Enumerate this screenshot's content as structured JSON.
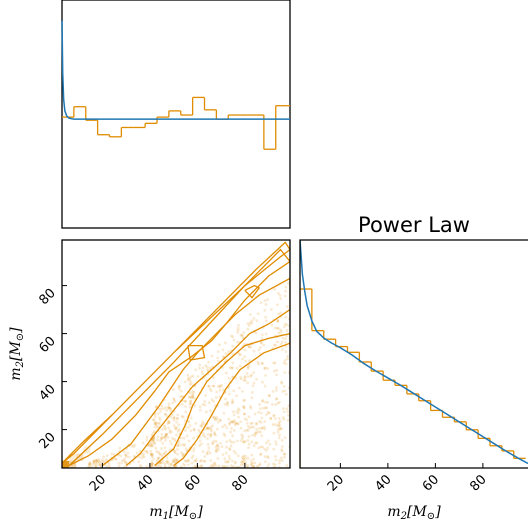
{
  "colors": {
    "samples": "#e08c00",
    "model": "#1f77b4",
    "axes": "#000000"
  },
  "chart_data": [
    {
      "type": "line",
      "panel": "m1-marginal",
      "title": "",
      "xlabel": "",
      "ylabel": "",
      "xlim": [
        3,
        99
      ],
      "histogram": {
        "bin_edges": [
          3,
          8,
          13,
          18,
          23,
          28,
          33,
          38,
          43,
          48,
          53,
          58,
          63,
          68,
          73,
          78,
          83,
          88,
          93,
          98
        ],
        "density": [
          0.0107,
          0.0117,
          0.0104,
          0.009,
          0.0088,
          0.0097,
          0.0097,
          0.0101,
          0.0107,
          0.0113,
          0.0109,
          0.0126,
          0.0114,
          0.0105,
          0.0109,
          0.0109,
          0.0109,
          0.0076,
          0.0118
        ]
      },
      "model": {
        "x": [
          3,
          3.3,
          3.7,
          4.2,
          5,
          6,
          8,
          12,
          20,
          40,
          99
        ],
        "y": [
          0.02,
          0.015,
          0.0124,
          0.0113,
          0.0108,
          0.0106,
          0.0105,
          0.0105,
          0.0105,
          0.0105,
          0.0105
        ]
      },
      "ylim": [
        0,
        0.022
      ],
      "ticks_shown": false
    },
    {
      "type": "scatter",
      "panel": "m1-m2-joint",
      "title": "",
      "xlabel": "m_1[M_⊙]",
      "ylabel": "m_2[M_⊙]",
      "xlim": [
        3,
        99
      ],
      "ylim": [
        4,
        99
      ],
      "x_ticks": [
        20,
        40,
        60,
        80
      ],
      "y_ticks": [
        20,
        40,
        60,
        80
      ],
      "x_tick_labels": [
        "20",
        "40",
        "60",
        "80"
      ],
      "y_tick_labels": [
        "20",
        "40",
        "60",
        "80"
      ],
      "boundary": "m2 <= m1",
      "contours": [
        {
          "level": 1,
          "points": [
            [
              3,
              6
            ],
            [
              12,
              15
            ],
            [
              25,
              27
            ],
            [
              40,
              42
            ],
            [
              55,
              57
            ],
            [
              70,
              72
            ],
            [
              85,
              87
            ],
            [
              97,
              98
            ],
            [
              99,
              95
            ],
            [
              95,
              92
            ],
            [
              80,
              80
            ],
            [
              65,
              66
            ],
            [
              50,
              52
            ],
            [
              35,
              37
            ],
            [
              20,
              22
            ],
            [
              8,
              10
            ],
            [
              3,
              6
            ]
          ]
        },
        {
          "level": 2,
          "points": [
            [
              6,
              5
            ],
            [
              20,
              18
            ],
            [
              35,
              33
            ],
            [
              50,
              48
            ],
            [
              65,
              64
            ],
            [
              80,
              80
            ],
            [
              95,
              95
            ],
            [
              99,
              90
            ],
            [
              90,
              84
            ],
            [
              80,
              74
            ],
            [
              72,
              64
            ],
            [
              66,
              57
            ],
            [
              57,
              50
            ],
            [
              48,
              44
            ],
            [
              42,
              36
            ],
            [
              34,
              26
            ],
            [
              24,
              16
            ],
            [
              14,
              9
            ],
            [
              6,
              5
            ]
          ]
        },
        {
          "level": 3,
          "points": [
            [
              20,
              5
            ],
            [
              32,
              14
            ],
            [
              44,
              30
            ],
            [
              54,
              45
            ],
            [
              60,
              52
            ],
            [
              68,
              60
            ],
            [
              76,
              68
            ],
            [
              86,
              76
            ],
            [
              99,
              83
            ],
            [
              99,
              70
            ],
            [
              90,
              64
            ],
            [
              82,
              60
            ],
            [
              74,
              52
            ],
            [
              66,
              45
            ],
            [
              58,
              38
            ],
            [
              50,
              28
            ],
            [
              42,
              18
            ],
            [
              36,
              10
            ],
            [
              30,
              5
            ]
          ]
        },
        {
          "level": 3,
          "points": [
            [
              56,
              55
            ],
            [
              62,
              55
            ],
            [
              63,
              50
            ],
            [
              57,
              49
            ],
            [
              56,
              55
            ]
          ]
        },
        {
          "level": 3,
          "points": [
            [
              80,
              78
            ],
            [
              84,
              80
            ],
            [
              86,
              79
            ],
            [
              83,
              75
            ],
            [
              80,
              78
            ]
          ]
        },
        {
          "level": 4,
          "points": [
            [
              42,
              5
            ],
            [
              50,
              12
            ],
            [
              55,
              22
            ],
            [
              58,
              30
            ],
            [
              64,
              40
            ],
            [
              72,
              48
            ],
            [
              80,
              55
            ],
            [
              90,
              58
            ],
            [
              99,
              60
            ],
            [
              99,
              56
            ],
            [
              88,
              52
            ],
            [
              78,
              45
            ],
            [
              72,
              37
            ],
            [
              66,
              26
            ],
            [
              60,
              16
            ],
            [
              54,
              8
            ],
            [
              50,
              5
            ]
          ]
        }
      ],
      "density_blocks": [
        {
          "x": [
            3,
            6
          ],
          "y": [
            4,
            7
          ],
          "shade": 0.9
        },
        {
          "x": [
            6,
            9
          ],
          "y": [
            4,
            7
          ],
          "shade": 0.35
        },
        {
          "x": [
            6,
            9
          ],
          "y": [
            7,
            10
          ],
          "shade": 0.15
        },
        {
          "x": [
            9,
            12
          ],
          "y": [
            7,
            10
          ],
          "shade": 0.25
        },
        {
          "x": [
            12,
            15
          ],
          "y": [
            10,
            13
          ],
          "shade": 0.15
        }
      ],
      "scatter_region": {
        "x_from": 40,
        "x_to": 99,
        "y_from": 4,
        "y_max_fraction_of_m1": 0.98,
        "count": 900,
        "opacity": 0.18
      }
    },
    {
      "type": "line",
      "panel": "m2-marginal",
      "title": "Power Law",
      "xlabel": "m_2[M_⊙]",
      "ylabel": "",
      "xlim": [
        3,
        99
      ],
      "x_ticks": [
        20,
        40,
        60,
        80
      ],
      "x_tick_labels": [
        "20",
        "40",
        "60",
        "80"
      ],
      "histogram": {
        "bin_edges": [
          3,
          8,
          13,
          18,
          23,
          28,
          33,
          38,
          43,
          48,
          53,
          58,
          63,
          68,
          73,
          78,
          83,
          88,
          93,
          98
        ],
        "density": [
          0.0314,
          0.0241,
          0.0226,
          0.0213,
          0.0203,
          0.0186,
          0.017,
          0.0154,
          0.0145,
          0.013,
          0.0118,
          0.0101,
          0.0089,
          0.0081,
          0.0067,
          0.0052,
          0.0039,
          0.003,
          0.0017
        ]
      },
      "model": {
        "x": [
          3,
          4,
          5,
          6,
          8,
          10,
          13,
          16,
          20,
          25,
          30,
          35,
          40,
          45,
          50,
          55,
          60,
          65,
          70,
          75,
          80,
          85,
          90,
          95,
          99
        ],
        "y": [
          0.04,
          0.034,
          0.031,
          0.0285,
          0.0258,
          0.024,
          0.0228,
          0.022,
          0.0211,
          0.0198,
          0.0183,
          0.017,
          0.0158,
          0.0146,
          0.0133,
          0.012,
          0.0107,
          0.0094,
          0.0081,
          0.0068,
          0.0055,
          0.0042,
          0.0029,
          0.0017,
          0.0008
        ]
      },
      "ylim": [
        0,
        0.04
      ],
      "ticks_shown": false
    }
  ]
}
